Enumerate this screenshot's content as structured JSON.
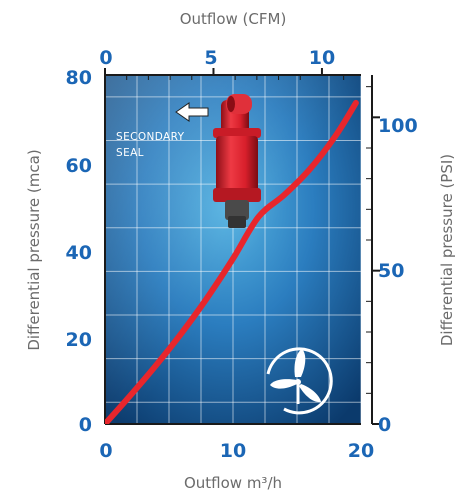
{
  "chart_data": {
    "type": "line",
    "title": "",
    "xlabel": "Outflow m³/h",
    "x_top_label": "Outflow (CFM)",
    "ylabel_left": "Differential pressure (mca)",
    "ylabel_right": "Differential pressure (PSI)",
    "xlim": [
      0,
      20
    ],
    "ylim": [
      0,
      80
    ],
    "x_ticks": [
      "0",
      "10",
      "20"
    ],
    "y_ticks_left": [
      "0",
      "20",
      "40",
      "60",
      "80"
    ],
    "x_top_ticks": [
      "0",
      "5",
      "10"
    ],
    "y_ticks_right": [
      "0",
      "50",
      "100"
    ],
    "top_axis_cfm_max": 11.8,
    "right_axis_psi_max": 113.8,
    "grid": true,
    "series": [
      {
        "name": "",
        "color": "#e8262c",
        "x": [
          0,
          2,
          4,
          6,
          8,
          10,
          12,
          14,
          16,
          18,
          19.6
        ],
        "y": [
          0,
          6.6,
          13.5,
          20.9,
          29.0,
          37.9,
          47.5,
          52.5,
          58.4,
          66.0,
          73.6
        ]
      }
    ],
    "annotation": "SECONDARY SEAL",
    "colors": {
      "axis": "#1a1a1a",
      "tick_label": "#1b66b5",
      "axis_title": "#6b6b6b",
      "plot_bg_dark": "#0d3f72",
      "plot_bg_light": "#4aa3d6",
      "grid": "#ffffff",
      "valve_body": "#d81f2b",
      "valve_cap": "#4a4a4a"
    },
    "icons": [
      "arrow-left-icon",
      "air-valve-icon",
      "fan-logo-icon"
    ]
  }
}
